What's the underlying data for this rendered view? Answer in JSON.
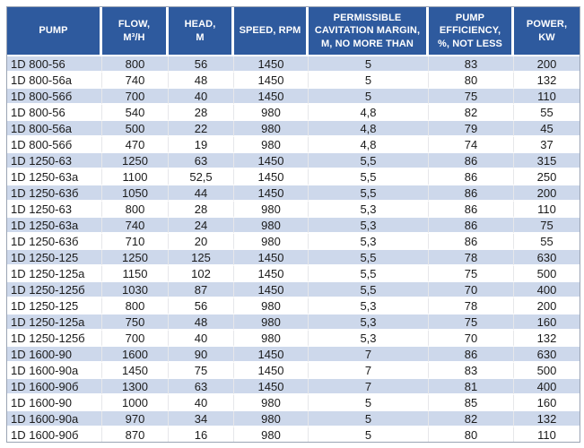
{
  "colors": {
    "header_background": "#2E5A9E",
    "header_text": "#FFFFFF",
    "row_alt_background": "#CDD8EB",
    "row_background": "#FFFFFF",
    "body_text": "#1B1B1B"
  },
  "chart_data": {
    "type": "table",
    "title": "",
    "columns": [
      {
        "key": "pump",
        "label": "PUMP",
        "label_lines": [
          "PUMP"
        ]
      },
      {
        "key": "flow",
        "label": "FLOW, M³/H",
        "label_lines": [
          "FLOW,",
          "M³/H"
        ]
      },
      {
        "key": "head",
        "label": "HEAD, M",
        "label_lines": [
          "HEAD,",
          "M"
        ]
      },
      {
        "key": "speed",
        "label": "SPEED, RPM",
        "label_lines": [
          "SPEED, RPM"
        ]
      },
      {
        "key": "cavitation_margin",
        "label": "PERMISSIBLE CAVITATION MARGIN, M, NO MORE THAN",
        "label_lines": [
          "PERMISSIBLE",
          "CAVITATION MARGIN,",
          "M, NO MORE THAN"
        ]
      },
      {
        "key": "efficiency",
        "label": "PUMP EFFICIENCY, %, NOT LESS",
        "label_lines": [
          "PUMP",
          "EFFICIENCY,",
          "%, NOT LESS"
        ]
      },
      {
        "key": "power",
        "label": "POWER, KW",
        "label_lines": [
          "POWER,",
          "KW"
        ]
      }
    ],
    "rows": [
      [
        "1D 800-56",
        "800",
        "56",
        "1450",
        "5",
        "83",
        "200"
      ],
      [
        "1D 800-56a",
        "740",
        "48",
        "1450",
        "5",
        "80",
        "132"
      ],
      [
        "1D 800-56б",
        "700",
        "40",
        "1450",
        "5",
        "75",
        "110"
      ],
      [
        "1D 800-56",
        "540",
        "28",
        "980",
        "4,8",
        "82",
        "55"
      ],
      [
        "1D 800-56a",
        "500",
        "22",
        "980",
        "4,8",
        "79",
        "45"
      ],
      [
        "1D 800-56б",
        "470",
        "19",
        "980",
        "4,8",
        "74",
        "37"
      ],
      [
        "1D 1250-63",
        "1250",
        "63",
        "1450",
        "5,5",
        "86",
        "315"
      ],
      [
        "1D 1250-63a",
        "1100",
        "52,5",
        "1450",
        "5,5",
        "86",
        "250"
      ],
      [
        "1D 1250-63б",
        "1050",
        "44",
        "1450",
        "5,5",
        "86",
        "200"
      ],
      [
        "1D 1250-63",
        "800",
        "28",
        "980",
        "5,3",
        "86",
        "110"
      ],
      [
        "1D 1250-63a",
        "740",
        "24",
        "980",
        "5,3",
        "86",
        "75"
      ],
      [
        "1D 1250-63б",
        "710",
        "20",
        "980",
        "5,3",
        "86",
        "55"
      ],
      [
        "1D 1250-125",
        "1250",
        "125",
        "1450",
        "5,5",
        "78",
        "630"
      ],
      [
        "1D 1250-125a",
        "1150",
        "102",
        "1450",
        "5,5",
        "75",
        "500"
      ],
      [
        "1D 1250-125б",
        "1030",
        "87",
        "1450",
        "5,5",
        "70",
        "400"
      ],
      [
        "1D 1250-125",
        "800",
        "56",
        "980",
        "5,3",
        "78",
        "200"
      ],
      [
        "1D 1250-125a",
        "750",
        "48",
        "980",
        "5,3",
        "75",
        "160"
      ],
      [
        "1D 1250-125б",
        "700",
        "40",
        "980",
        "5,3",
        "70",
        "132"
      ],
      [
        "1D 1600-90",
        "1600",
        "90",
        "1450",
        "7",
        "86",
        "630"
      ],
      [
        "1D 1600-90a",
        "1450",
        "75",
        "1450",
        "7",
        "83",
        "500"
      ],
      [
        "1D 1600-90б",
        "1300",
        "63",
        "1450",
        "7",
        "81",
        "400"
      ],
      [
        "1D 1600-90",
        "1000",
        "40",
        "980",
        "5",
        "85",
        "160"
      ],
      [
        "1D 1600-90a",
        "970",
        "34",
        "980",
        "5",
        "82",
        "132"
      ],
      [
        "1D 1600-90б",
        "870",
        "16",
        "980",
        "5",
        "80",
        "110"
      ]
    ]
  }
}
